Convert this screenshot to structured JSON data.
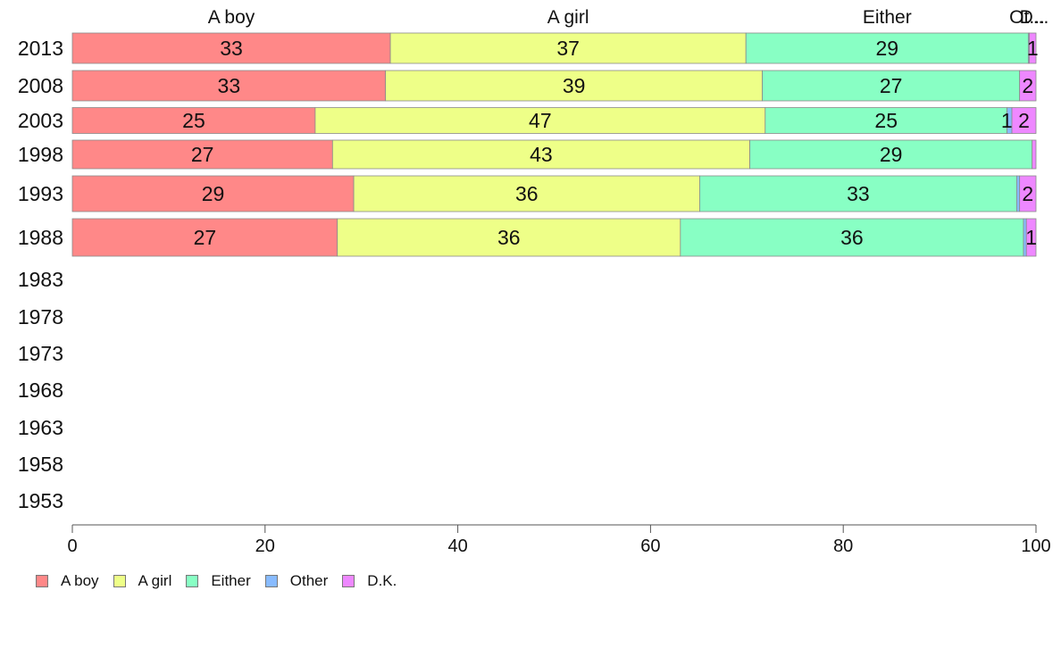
{
  "chart_data": {
    "type": "bar",
    "orientation": "horizontal",
    "stacked": true,
    "categories": [
      "2013",
      "2008",
      "2003",
      "1998",
      "1993",
      "1988",
      "1983",
      "1978",
      "1973",
      "1968",
      "1963",
      "1958",
      "1953"
    ],
    "series": [
      {
        "name": "A boy",
        "color": "#ff8888",
        "values": [
          33,
          32.5,
          25.2,
          27,
          29.2,
          27.5,
          null,
          null,
          null,
          null,
          null,
          null,
          null
        ],
        "labels": [
          "33",
          "33",
          "25",
          "27",
          "29",
          "27",
          "",
          "",
          "",
          "",
          "",
          "",
          ""
        ]
      },
      {
        "name": "A girl",
        "color": "#eeff88",
        "values": [
          36.9,
          39.1,
          46.7,
          43.3,
          35.9,
          35.6,
          null,
          null,
          null,
          null,
          null,
          null,
          null
        ],
        "labels": [
          "37",
          "39",
          "47",
          "43",
          "36",
          "36",
          "",
          "",
          "",
          "",
          "",
          "",
          ""
        ]
      },
      {
        "name": "Either",
        "color": "#88ffc4",
        "values": [
          29.3,
          26.7,
          25.1,
          29.3,
          32.9,
          35.6,
          null,
          null,
          null,
          null,
          null,
          null,
          null
        ],
        "labels": [
          "29",
          "27",
          "25",
          "29",
          "33",
          "36",
          "",
          "",
          "",
          "",
          "",
          "",
          ""
        ]
      },
      {
        "name": "Other",
        "color": "#88bbff",
        "values": [
          0.1,
          0,
          0.5,
          0,
          0.3,
          0.3,
          null,
          null,
          null,
          null,
          null,
          null,
          null
        ],
        "labels": [
          "",
          "",
          "1",
          "",
          "",
          "",
          "",
          "",
          "",
          "",
          "",
          "",
          ""
        ]
      },
      {
        "name": "D.K.",
        "color": "#ee88ff",
        "values": [
          0.7,
          1.7,
          2.5,
          0.4,
          1.7,
          1.0,
          null,
          null,
          null,
          null,
          null,
          null,
          null
        ],
        "labels": [
          "1",
          "2",
          "2",
          "",
          "2",
          "1",
          "",
          "",
          "",
          "",
          "",
          "",
          ""
        ]
      }
    ],
    "column_headers": [
      "A boy",
      "A girl",
      "Either",
      "Ot...",
      "D..."
    ],
    "xlim": [
      0,
      100
    ],
    "xticks": [
      0,
      20,
      40,
      60,
      80,
      100
    ],
    "legend_position": "bottom-left",
    "grid": false,
    "title": "",
    "xlabel": "",
    "ylabel": ""
  }
}
